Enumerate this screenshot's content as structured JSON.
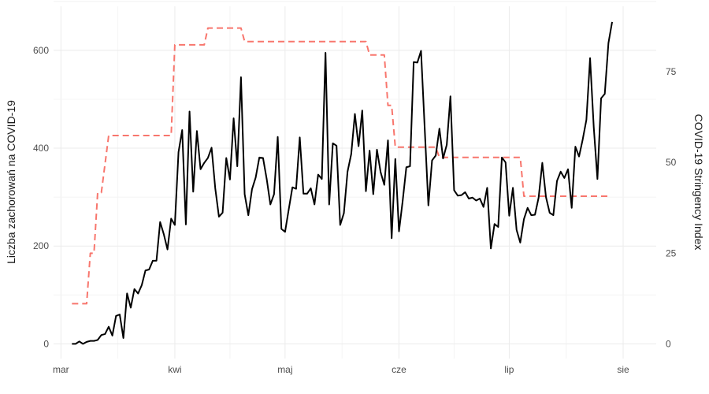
{
  "chart_data": {
    "type": "line",
    "title": "",
    "xlabel": "",
    "ylabel_left": "Liczba zachorowań na COVID-19",
    "ylabel_right": "COVID-19 Stringency Index",
    "x_ticks": [
      "mar",
      "kwi",
      "maj",
      "cze",
      "lip",
      "sie"
    ],
    "x_tick_dates": [
      "2020-03-01",
      "2020-04-01",
      "2020-05-01",
      "2020-06-01",
      "2020-07-01",
      "2020-08-01"
    ],
    "xlim": [
      "2020-02-28",
      "2020-08-10"
    ],
    "y_left_ticks": [
      0,
      200,
      400,
      600
    ],
    "ylim_left": [
      -30,
      690
    ],
    "y_right_ticks": [
      0,
      25,
      50,
      75
    ],
    "ylim_right": [
      -4.0,
      93.0
    ],
    "grid": true,
    "legend": "none",
    "series": [
      {
        "axis": "left",
        "color": "#000000",
        "style": "solid",
        "points": [
          [
            "2020-03-04",
            0
          ],
          [
            "2020-03-05",
            0
          ],
          [
            "2020-03-06",
            5
          ],
          [
            "2020-03-07",
            0
          ],
          [
            "2020-03-08",
            4
          ],
          [
            "2020-03-09",
            6
          ],
          [
            "2020-03-10",
            6
          ],
          [
            "2020-03-11",
            8
          ],
          [
            "2020-03-12",
            18
          ],
          [
            "2020-03-13",
            20
          ],
          [
            "2020-03-14",
            35
          ],
          [
            "2020-03-15",
            17
          ],
          [
            "2020-03-16",
            57
          ],
          [
            "2020-03-17",
            60
          ],
          [
            "2020-03-18",
            12
          ],
          [
            "2020-03-19",
            103
          ],
          [
            "2020-03-20",
            74
          ],
          [
            "2020-03-21",
            112
          ],
          [
            "2020-03-22",
            103
          ],
          [
            "2020-03-23",
            120
          ],
          [
            "2020-03-24",
            150
          ],
          [
            "2020-03-25",
            152
          ],
          [
            "2020-03-26",
            170
          ],
          [
            "2020-03-27",
            170
          ],
          [
            "2020-03-28",
            249
          ],
          [
            "2020-03-29",
            224
          ],
          [
            "2020-03-30",
            193
          ],
          [
            "2020-03-31",
            256
          ],
          [
            "2020-04-01",
            243
          ],
          [
            "2020-04-02",
            392
          ],
          [
            "2020-04-03",
            437
          ],
          [
            "2020-04-04",
            244
          ],
          [
            "2020-04-05",
            475
          ],
          [
            "2020-04-06",
            311
          ],
          [
            "2020-04-07",
            435
          ],
          [
            "2020-04-08",
            357
          ],
          [
            "2020-04-09",
            370
          ],
          [
            "2020-04-10",
            380
          ],
          [
            "2020-04-11",
            401
          ],
          [
            "2020-04-12",
            318
          ],
          [
            "2020-04-13",
            260
          ],
          [
            "2020-04-14",
            268
          ],
          [
            "2020-04-15",
            380
          ],
          [
            "2020-04-16",
            336
          ],
          [
            "2020-04-17",
            461
          ],
          [
            "2020-04-18",
            363
          ],
          [
            "2020-04-19",
            545
          ],
          [
            "2020-04-20",
            306
          ],
          [
            "2020-04-21",
            263
          ],
          [
            "2020-04-22",
            316
          ],
          [
            "2020-04-23",
            340
          ],
          [
            "2020-04-24",
            381
          ],
          [
            "2020-04-25",
            380
          ],
          [
            "2020-04-26",
            337
          ],
          [
            "2020-04-27",
            285
          ],
          [
            "2020-04-28",
            306
          ],
          [
            "2020-04-29",
            423
          ],
          [
            "2020-04-30",
            235
          ],
          [
            "2020-05-01",
            229
          ],
          [
            "2020-05-02",
            275
          ],
          [
            "2020-05-03",
            320
          ],
          [
            "2020-05-04",
            317
          ],
          [
            "2020-05-05",
            422
          ],
          [
            "2020-05-06",
            307
          ],
          [
            "2020-05-07",
            307
          ],
          [
            "2020-05-08",
            318
          ],
          [
            "2020-05-09",
            285
          ],
          [
            "2020-05-10",
            346
          ],
          [
            "2020-05-11",
            337
          ],
          [
            "2020-05-12",
            595
          ],
          [
            "2020-05-13",
            285
          ],
          [
            "2020-05-14",
            410
          ],
          [
            "2020-05-15",
            405
          ],
          [
            "2020-05-16",
            243
          ],
          [
            "2020-05-17",
            267
          ],
          [
            "2020-05-18",
            352
          ],
          [
            "2020-05-19",
            388
          ],
          [
            "2020-05-20",
            470
          ],
          [
            "2020-05-21",
            404
          ],
          [
            "2020-05-22",
            477
          ],
          [
            "2020-05-23",
            312
          ],
          [
            "2020-05-24",
            395
          ],
          [
            "2020-05-25",
            306
          ],
          [
            "2020-05-26",
            397
          ],
          [
            "2020-05-27",
            351
          ],
          [
            "2020-05-28",
            325
          ],
          [
            "2020-05-29",
            416
          ],
          [
            "2020-05-30",
            216
          ],
          [
            "2020-05-31",
            378
          ],
          [
            "2020-06-01",
            230
          ],
          [
            "2020-06-02",
            292
          ],
          [
            "2020-06-03",
            361
          ],
          [
            "2020-06-04",
            363
          ],
          [
            "2020-06-05",
            576
          ],
          [
            "2020-06-06",
            575
          ],
          [
            "2020-06-07",
            599
          ],
          [
            "2020-06-08",
            440
          ],
          [
            "2020-06-09",
            283
          ],
          [
            "2020-06-10",
            375
          ],
          [
            "2020-06-11",
            385
          ],
          [
            "2020-06-12",
            440
          ],
          [
            "2020-06-13",
            379
          ],
          [
            "2020-06-14",
            407
          ],
          [
            "2020-06-15",
            506
          ],
          [
            "2020-06-16",
            314
          ],
          [
            "2020-06-17",
            303
          ],
          [
            "2020-06-18",
            304
          ],
          [
            "2020-06-19",
            310
          ],
          [
            "2020-06-20",
            297
          ],
          [
            "2020-06-21",
            299
          ],
          [
            "2020-06-22",
            293
          ],
          [
            "2020-06-23",
            297
          ],
          [
            "2020-06-24",
            280
          ],
          [
            "2020-06-25",
            319
          ],
          [
            "2020-06-26",
            195
          ],
          [
            "2020-06-27",
            245
          ],
          [
            "2020-06-28",
            239
          ],
          [
            "2020-06-29",
            381
          ],
          [
            "2020-06-30",
            371
          ],
          [
            "2020-07-01",
            262
          ],
          [
            "2020-07-02",
            319
          ],
          [
            "2020-07-03",
            233
          ],
          [
            "2020-07-04",
            207
          ],
          [
            "2020-07-05",
            255
          ],
          [
            "2020-07-06",
            278
          ],
          [
            "2020-07-07",
            263
          ],
          [
            "2020-07-08",
            264
          ],
          [
            "2020-07-09",
            299
          ],
          [
            "2020-07-10",
            370
          ],
          [
            "2020-07-11",
            300
          ],
          [
            "2020-07-12",
            268
          ],
          [
            "2020-07-13",
            263
          ],
          [
            "2020-07-14",
            333
          ],
          [
            "2020-07-15",
            352
          ],
          [
            "2020-07-16",
            339
          ],
          [
            "2020-07-17",
            357
          ],
          [
            "2020-07-18",
            278
          ],
          [
            "2020-07-19",
            403
          ],
          [
            "2020-07-20",
            383
          ],
          [
            "2020-07-21",
            418
          ],
          [
            "2020-07-22",
            458
          ],
          [
            "2020-07-23",
            584
          ],
          [
            "2020-07-24",
            443
          ],
          [
            "2020-07-25",
            337
          ],
          [
            "2020-07-26",
            502
          ],
          [
            "2020-07-27",
            511
          ],
          [
            "2020-07-28",
            615
          ],
          [
            "2020-07-29",
            658
          ]
        ]
      },
      {
        "axis": "right",
        "color": "#f8766d",
        "style": "dashed",
        "points": [
          [
            "2020-03-04",
            11.1
          ],
          [
            "2020-03-08",
            11.1
          ],
          [
            "2020-03-09",
            25.0
          ],
          [
            "2020-03-10",
            25.0
          ],
          [
            "2020-03-11",
            41.7
          ],
          [
            "2020-03-12",
            41.7
          ],
          [
            "2020-03-14",
            57.4
          ],
          [
            "2020-03-31",
            57.4
          ],
          [
            "2020-04-01",
            82.4
          ],
          [
            "2020-04-09",
            82.4
          ],
          [
            "2020-04-10",
            87.0
          ],
          [
            "2020-04-19",
            87.0
          ],
          [
            "2020-04-20",
            83.3
          ],
          [
            "2020-05-23",
            83.3
          ],
          [
            "2020-05-24",
            79.6
          ],
          [
            "2020-05-28",
            79.6
          ],
          [
            "2020-05-29",
            65.7
          ],
          [
            "2020-05-30",
            65.7
          ],
          [
            "2020-05-31",
            54.2
          ],
          [
            "2020-06-11",
            54.2
          ],
          [
            "2020-06-12",
            51.4
          ],
          [
            "2020-07-04",
            51.4
          ],
          [
            "2020-07-05",
            40.7
          ],
          [
            "2020-07-28",
            40.7
          ]
        ]
      }
    ]
  }
}
